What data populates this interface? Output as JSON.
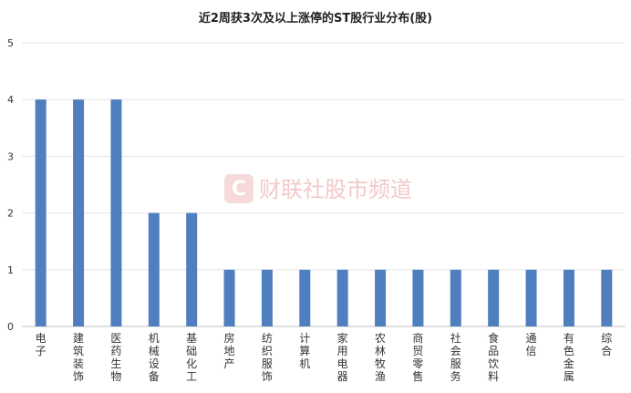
{
  "chart_data": {
    "type": "bar",
    "title": "近2周获3次及以上涨停的ST股行业分布(股)",
    "watermark": "财联社股市频道",
    "categories": [
      "电子",
      "建筑装饰",
      "医药生物",
      "机械设备",
      "基础化工",
      "房地产",
      "纺织服饰",
      "计算机",
      "家用电器",
      "农林牧渔",
      "商贸零售",
      "社会服务",
      "食品饮料",
      "通信",
      "有色金属",
      "综合"
    ],
    "values": [
      4,
      4,
      4,
      2,
      2,
      1,
      1,
      1,
      1,
      1,
      1,
      1,
      1,
      1,
      1,
      1
    ],
    "ylim": [
      0,
      5
    ],
    "yticks": [
      "0",
      "1",
      "2",
      "3",
      "4",
      "5"
    ],
    "xlabel": "",
    "ylabel": "",
    "grid": true,
    "colors": {
      "bar": "#4f7fbf",
      "grid": "#e6e6e6",
      "axis": "#bfbfbf",
      "text": "#333333",
      "title": "#222222",
      "watermark": "#f2c9c9",
      "logo": "#f6dada"
    }
  }
}
